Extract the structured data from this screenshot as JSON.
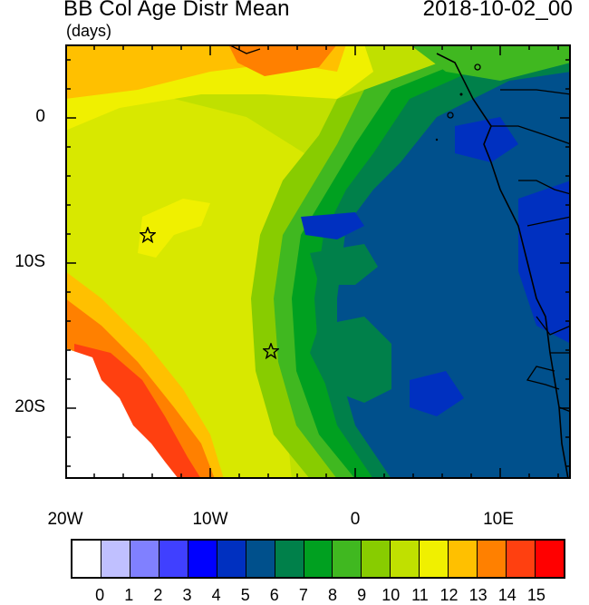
{
  "header": {
    "title": "BB Col Age Distr Mean",
    "units": "(days)",
    "datetime": "2018-10-02_00"
  },
  "axes": {
    "lat_ticks": [
      "0",
      "10S",
      "20S"
    ],
    "lon_ticks": [
      "20W",
      "10W",
      "0",
      "10E"
    ]
  },
  "colorbar": {
    "labels": [
      "0",
      "1",
      "2",
      "3",
      "4",
      "5",
      "6",
      "7",
      "8",
      "9",
      "10",
      "11",
      "12",
      "13",
      "14",
      "15"
    ],
    "colors": [
      "#ffffff",
      "#c0c0ff",
      "#8080ff",
      "#4040ff",
      "#0000ff",
      "#0030c0",
      "#00508c",
      "#00804a",
      "#00a020",
      "#40b820",
      "#88cc00",
      "#c0e000",
      "#f0f000",
      "#ffc000",
      "#ff8000",
      "#ff4010",
      "#ff0000"
    ]
  },
  "markers": [
    {
      "name": "star-marker-1",
      "lon": -14.3,
      "lat": -8.0
    },
    {
      "name": "star-marker-2",
      "lon": -5.8,
      "lat": -16.0
    }
  ]
}
